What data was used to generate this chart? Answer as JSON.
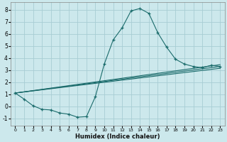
{
  "title": "",
  "xlabel": "Humidex (Indice chaleur)",
  "background_color": "#cce8ec",
  "grid_color": "#a8cdd4",
  "line_color": "#1a6b6b",
  "xlim": [
    -0.5,
    23.5
  ],
  "ylim": [
    -1.6,
    8.6
  ],
  "xticks": [
    0,
    1,
    2,
    3,
    4,
    5,
    6,
    7,
    8,
    9,
    10,
    11,
    12,
    13,
    14,
    15,
    16,
    17,
    18,
    19,
    20,
    21,
    22,
    23
  ],
  "yticks": [
    -1,
    0,
    1,
    2,
    3,
    4,
    5,
    6,
    7,
    8
  ],
  "series1": {
    "x": [
      0,
      1,
      2,
      3,
      4,
      5,
      6,
      7,
      8,
      9,
      10,
      11,
      12,
      13,
      14,
      15,
      16,
      17,
      18,
      19,
      20,
      21,
      22,
      23
    ],
    "y": [
      1.1,
      0.6,
      0.05,
      -0.25,
      -0.3,
      -0.55,
      -0.65,
      -0.9,
      -0.85,
      0.8,
      3.5,
      5.5,
      6.5,
      7.9,
      8.1,
      7.7,
      6.1,
      4.9,
      3.9,
      3.5,
      3.3,
      3.2,
      3.4,
      3.3
    ]
  },
  "series2": {
    "x": [
      0,
      23
    ],
    "y": [
      1.1,
      3.45
    ]
  },
  "series3": {
    "x": [
      0,
      23
    ],
    "y": [
      1.1,
      3.3
    ]
  },
  "series4": {
    "x": [
      0,
      23
    ],
    "y": [
      1.1,
      3.15
    ]
  }
}
